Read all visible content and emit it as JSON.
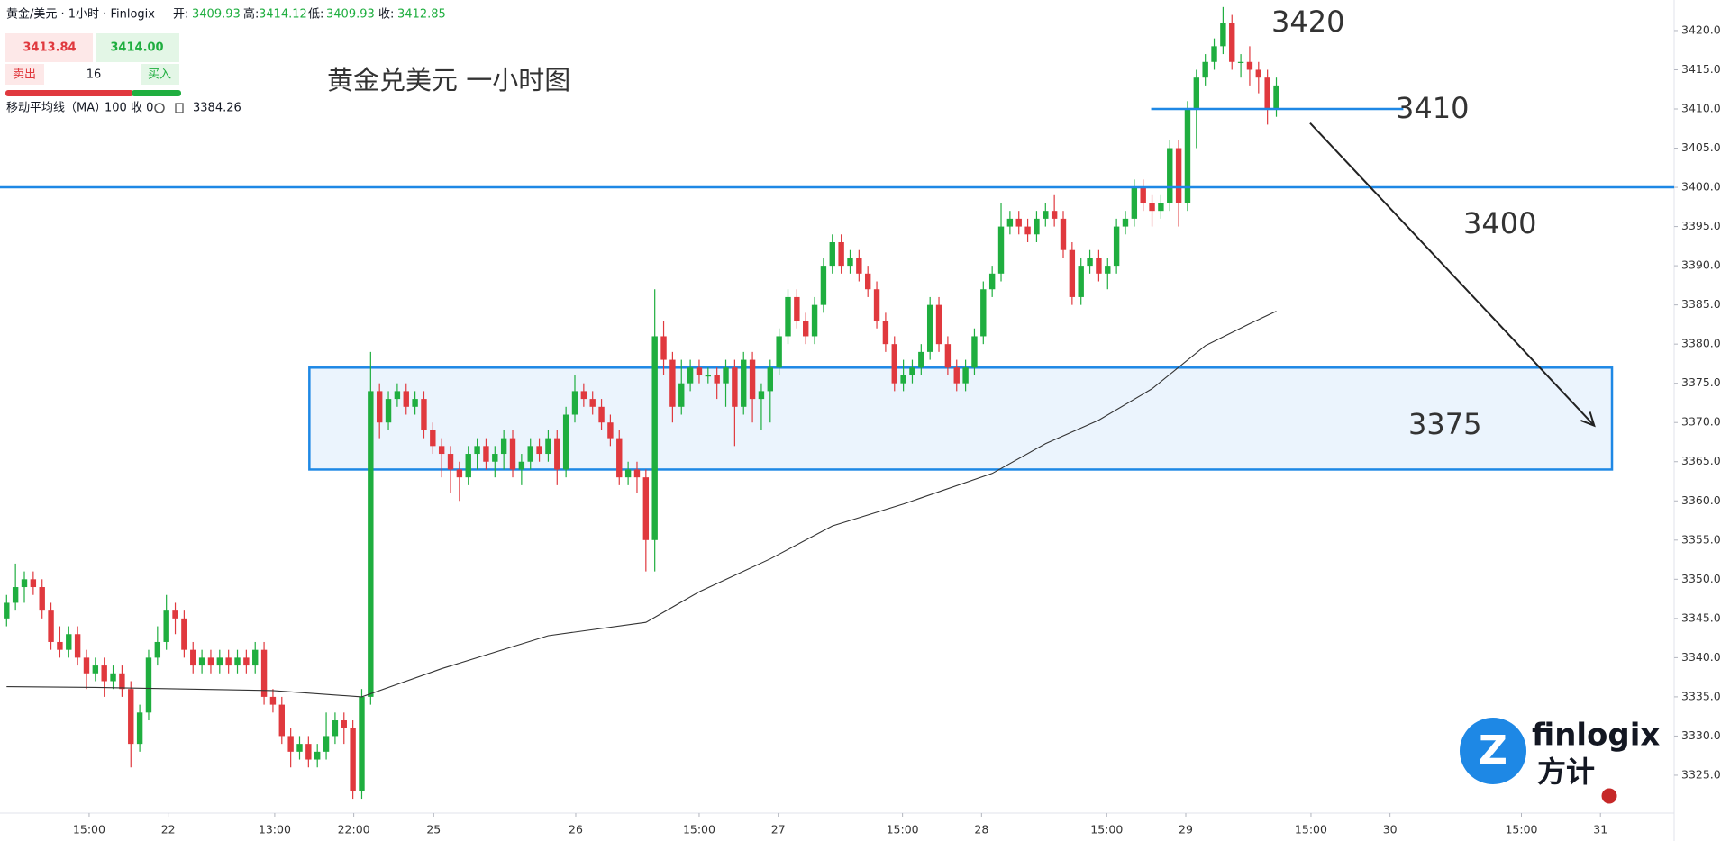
{
  "header": {
    "symbol": "黄金/美元 · 1小时 · Finlogix",
    "open_label": "开:",
    "open": "3409.93",
    "high_label": "高:",
    "high": "3414.12",
    "low_label": "低:",
    "low": "3409.93",
    "close_label": "收:",
    "close": "3412.85",
    "sell_price": "3413.84",
    "buy_price": "3414.00",
    "sell_label": "卖出",
    "spread": "16",
    "buy_label": "买入",
    "ma_label": "移动平均线（MA）",
    "ma_params": "100 收 0",
    "ma_value": "3384.26",
    "logo": "finlogix",
    "logo_cn": "方计"
  },
  "chart_data": {
    "type": "candlestick",
    "title": "黄金兑美元 一小时图",
    "up_color": "#1fae3f",
    "down_color": "#e0393e",
    "grid": false,
    "xlim": [
      -0.74,
      187.8
    ],
    "ylim": [
      3320.4,
      3423.9
    ],
    "xticks": [
      {
        "value": 9.3,
        "label": "15:00"
      },
      {
        "value": 18.2,
        "label": "22"
      },
      {
        "value": 30.2,
        "label": "13:00"
      },
      {
        "value": 39.1,
        "label": "22:00"
      },
      {
        "value": 48.1,
        "label": "25"
      },
      {
        "value": 64.1,
        "label": "26"
      },
      {
        "value": 78.0,
        "label": "15:00"
      },
      {
        "value": 86.9,
        "label": "27"
      },
      {
        "value": 100.9,
        "label": "15:00"
      },
      {
        "value": 109.8,
        "label": "28"
      },
      {
        "value": 123.9,
        "label": "15:00"
      },
      {
        "value": 132.8,
        "label": "29"
      },
      {
        "value": 146.9,
        "label": "15:00"
      },
      {
        "value": 155.8,
        "label": "30"
      },
      {
        "value": 170.6,
        "label": "15:00"
      },
      {
        "value": 179.5,
        "label": "31"
      }
    ],
    "yticks": [
      {
        "value": 3325,
        "label": "3325.00"
      },
      {
        "value": 3330,
        "label": "3330.00"
      },
      {
        "value": 3335,
        "label": "3335.00"
      },
      {
        "value": 3340,
        "label": "3340.00"
      },
      {
        "value": 3345,
        "label": "3345.00"
      },
      {
        "value": 3350,
        "label": "3350.00"
      },
      {
        "value": 3355,
        "label": "3355.00"
      },
      {
        "value": 3360,
        "label": "3360.00"
      },
      {
        "value": 3365,
        "label": "3365.00"
      },
      {
        "value": 3370,
        "label": "3370.00"
      },
      {
        "value": 3375,
        "label": "3375.00"
      },
      {
        "value": 3380,
        "label": "3380.00"
      },
      {
        "value": 3385,
        "label": "3385.00"
      },
      {
        "value": 3390,
        "label": "3390.00"
      },
      {
        "value": 3395,
        "label": "3395.00"
      },
      {
        "value": 3400,
        "label": "3400.00"
      },
      {
        "value": 3405,
        "label": "3405.00"
      },
      {
        "value": 3410,
        "label": "3410.00"
      },
      {
        "value": 3415,
        "label": "3415.00"
      },
      {
        "value": 3420,
        "label": "3420.00"
      }
    ],
    "open": [
      3345,
      3347,
      3349,
      3350,
      3349,
      3346,
      3342,
      3341,
      3343,
      3340,
      3338,
      3339,
      3337,
      3338,
      3336,
      3329,
      3333,
      3340,
      3342,
      3346,
      3345,
      3341,
      3339,
      3340,
      3339,
      3340,
      3339,
      3340,
      3339,
      3341,
      3335,
      3334,
      3330,
      3328,
      3329,
      3327,
      3328,
      3330,
      3332,
      3331,
      3323,
      3335,
      3374,
      3370,
      3373,
      3374,
      3372,
      3373,
      3369,
      3367,
      3366,
      3364,
      3363,
      3366,
      3367,
      3365,
      3366,
      3368,
      3364,
      3365,
      3367,
      3366,
      3368,
      3364,
      3371,
      3374,
      3373,
      3372,
      3370,
      3368,
      3363,
      3364,
      3363,
      3355,
      3381,
      3378,
      3372,
      3375,
      3377,
      3376,
      3376,
      3375,
      3377,
      3372,
      3378,
      3373,
      3374,
      3377,
      3381,
      3386,
      3383,
      3381,
      3385,
      3390,
      3393,
      3390,
      3391,
      3389,
      3387,
      3383,
      3380,
      3375,
      3376,
      3377,
      3379,
      3385,
      3380,
      3377,
      3375,
      3377,
      3381,
      3387,
      3389,
      3395,
      3396,
      3395,
      3394,
      3396,
      3397,
      3396,
      3392,
      3386,
      3390,
      3391,
      3389,
      3390,
      3395,
      3396,
      3400,
      3398,
      3397,
      3398,
      3405,
      3398,
      3410,
      3414,
      3416,
      3418,
      3421,
      3416,
      3416,
      3415,
      3414,
      3410
    ],
    "high": [
      3348,
      3352,
      3351,
      3351,
      3350,
      3347,
      3344,
      3344,
      3344,
      3341,
      3340,
      3340,
      3339,
      3339,
      3337,
      3334,
      3341,
      3344,
      3348,
      3347,
      3346,
      3342,
      3341,
      3341,
      3341,
      3341,
      3341,
      3341,
      3342,
      3342,
      3336,
      3335,
      3331,
      3330,
      3330,
      3329,
      3333,
      3333,
      3333,
      3332,
      3336,
      3379,
      3375,
      3374,
      3375,
      3375,
      3374,
      3374,
      3370,
      3368,
      3367,
      3365,
      3367,
      3368,
      3368,
      3367,
      3369,
      3369,
      3366,
      3368,
      3368,
      3369,
      3369,
      3372,
      3376,
      3375,
      3374,
      3373,
      3371,
      3369,
      3365,
      3365,
      3364,
      3387,
      3383,
      3379,
      3378,
      3378,
      3378,
      3377,
      3377,
      3378,
      3378,
      3379,
      3379,
      3375,
      3378,
      3382,
      3387,
      3387,
      3384,
      3386,
      3391,
      3394,
      3394,
      3392,
      3392,
      3390,
      3388,
      3384,
      3381,
      3378,
      3378,
      3380,
      3386,
      3386,
      3381,
      3378,
      3378,
      3382,
      3388,
      3390,
      3398,
      3397,
      3397,
      3396,
      3397,
      3398,
      3399,
      3397,
      3393,
      3391,
      3392,
      3392,
      3391,
      3396,
      3397,
      3401,
      3401,
      3399,
      3399,
      3406,
      3406,
      3411,
      3415,
      3417,
      3419,
      3423,
      3422,
      3417,
      3418,
      3416,
      3415,
      3414
    ],
    "low": [
      3344,
      3346,
      3347,
      3348,
      3345,
      3341,
      3340,
      3340,
      3339,
      3336,
      3337,
      3335,
      3336,
      3335,
      3326,
      3328,
      3332,
      3339,
      3341,
      3343,
      3340,
      3338,
      3338,
      3338,
      3338,
      3338,
      3338,
      3338,
      3338,
      3334,
      3333,
      3329,
      3326,
      3327,
      3326,
      3326,
      3327,
      3329,
      3329,
      3322,
      3322,
      3334,
      3368,
      3369,
      3372,
      3371,
      3371,
      3368,
      3366,
      3363,
      3361,
      3360,
      3362,
      3364,
      3364,
      3363,
      3364,
      3363,
      3362,
      3364,
      3365,
      3365,
      3362,
      3363,
      3370,
      3372,
      3371,
      3369,
      3367,
      3362,
      3362,
      3361,
      3351,
      3351,
      3376,
      3370,
      3371,
      3374,
      3375,
      3375,
      3373,
      3372,
      3367,
      3371,
      3370,
      3369,
      3370,
      3376,
      3380,
      3382,
      3380,
      3380,
      3384,
      3389,
      3389,
      3389,
      3388,
      3386,
      3382,
      3379,
      3374,
      3374,
      3375,
      3376,
      3378,
      3379,
      3376,
      3374,
      3374,
      3376,
      3380,
      3386,
      3388,
      3394,
      3394,
      3393,
      3393,
      3395,
      3395,
      3391,
      3385,
      3385,
      3389,
      3388,
      3387,
      3389,
      3394,
      3395,
      3397,
      3395,
      3396,
      3397,
      3395,
      3397,
      3405,
      3413,
      3415,
      3417,
      3415,
      3414,
      3413,
      3412,
      3408,
      3409
    ],
    "close": [
      3347,
      3349,
      3350,
      3349,
      3346,
      3342,
      3341,
      3343,
      3340,
      3338,
      3339,
      3337,
      3338,
      3336,
      3329,
      3333,
      3340,
      3342,
      3346,
      3345,
      3341,
      3339,
      3340,
      3339,
      3340,
      3339,
      3340,
      3339,
      3341,
      3335,
      3334,
      3330,
      3328,
      3329,
      3327,
      3328,
      3330,
      3332,
      3331,
      3323,
      3335,
      3374,
      3370,
      3373,
      3374,
      3372,
      3373,
      3369,
      3367,
      3366,
      3364,
      3363,
      3366,
      3367,
      3365,
      3366,
      3368,
      3364,
      3365,
      3367,
      3366,
      3368,
      3364,
      3371,
      3374,
      3373,
      3372,
      3370,
      3368,
      3363,
      3364,
      3363,
      3355,
      3381,
      3378,
      3372,
      3375,
      3377,
      3376,
      3376,
      3375,
      3377,
      3372,
      3378,
      3373,
      3374,
      3377,
      3381,
      3386,
      3383,
      3381,
      3385,
      3390,
      3393,
      3390,
      3391,
      3389,
      3387,
      3383,
      3380,
      3375,
      3376,
      3377,
      3379,
      3385,
      3380,
      3377,
      3375,
      3377,
      3381,
      3387,
      3389,
      3395,
      3396,
      3395,
      3394,
      3396,
      3397,
      3396,
      3392,
      3386,
      3390,
      3391,
      3389,
      3390,
      3395,
      3396,
      3400,
      3398,
      3397,
      3398,
      3405,
      3398,
      3410,
      3414,
      3416,
      3418,
      3421,
      3416,
      3416,
      3415,
      3414,
      3410,
      3413
    ],
    "ma": {
      "color": "#333333",
      "x": [
        0,
        10,
        20,
        30,
        40,
        49,
        61,
        72,
        78,
        86,
        93,
        101,
        111,
        117,
        123,
        129,
        135,
        140,
        143
      ],
      "values": [
        3336.3,
        3336.2,
        3336,
        3335.8,
        3335,
        3338.6,
        3342.8,
        3344.5,
        3348.4,
        3352.6,
        3356.8,
        3359.6,
        3363.5,
        3367.3,
        3370.3,
        3374.3,
        3379.8,
        3382.6,
        3384.2
      ]
    },
    "levels": [
      {
        "value": 3400,
        "x": [
          -0.74,
          187.8
        ]
      },
      {
        "value": 3410,
        "x": [
          128.9,
          157.3
        ]
      }
    ],
    "zone": {
      "y": [
        3364,
        3377
      ],
      "x": [
        34.1,
        180.8
      ]
    },
    "arrow": {
      "x": [
        146.8,
        178.8
      ],
      "y": [
        3408.2,
        3369.6
      ]
    },
    "line_color": "#1e88e5",
    "annotations": [
      "3420",
      "3410",
      "3400",
      "3375"
    ]
  }
}
